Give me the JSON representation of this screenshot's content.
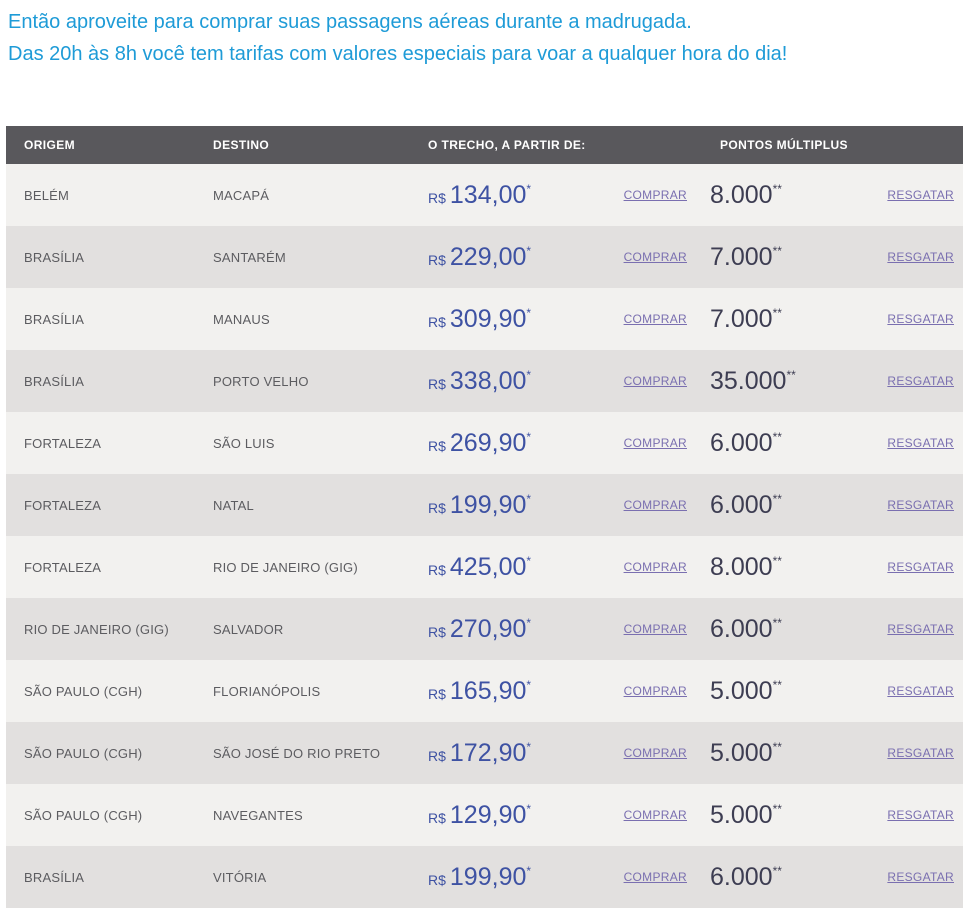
{
  "intro": {
    "line1": "Então aproveite para comprar suas passagens aéreas durante a madrugada.",
    "line2": "Das 20h às 8h você tem tarifas com valores especiais para voar a qualquer hora do dia!"
  },
  "table": {
    "headers": {
      "origin": "ORIGEM",
      "destination": "DESTINO",
      "price": "O TRECHO, A PARTIR DE:",
      "points": "PONTOS MÚLTIPLUS"
    },
    "currency": "R$",
    "price_note_marker": "*",
    "points_note_marker": "**",
    "buy_label": "COMPRAR",
    "redeem_label": "RESGATAR",
    "rows": [
      {
        "origin": "BELÉM",
        "destination": "MACAPÁ",
        "price": "134,00",
        "points": "8.000"
      },
      {
        "origin": "BRASÍLIA",
        "destination": "SANTARÉM",
        "price": "229,00",
        "points": "7.000"
      },
      {
        "origin": "BRASÍLIA",
        "destination": "MANAUS",
        "price": "309,90",
        "points": "7.000"
      },
      {
        "origin": "BRASÍLIA",
        "destination": "PORTO VELHO",
        "price": "338,00",
        "points": "35.000"
      },
      {
        "origin": "FORTALEZA",
        "destination": "SÃO LUIS",
        "price": "269,90",
        "points": "6.000"
      },
      {
        "origin": "FORTALEZA",
        "destination": "NATAL",
        "price": "199,90",
        "points": "6.000"
      },
      {
        "origin": "FORTALEZA",
        "destination": "RIO DE JANEIRO (GIG)",
        "price": "425,00",
        "points": "8.000"
      },
      {
        "origin": "RIO DE JANEIRO (GIG)",
        "destination": "SALVADOR",
        "price": "270,90",
        "points": "6.000"
      },
      {
        "origin": "SÃO PAULO (CGH)",
        "destination": "FLORIANÓPOLIS",
        "price": "165,90",
        "points": "5.000"
      },
      {
        "origin": "SÃO PAULO (CGH)",
        "destination": "SÃO JOSÉ DO RIO PRETO",
        "price": "172,90",
        "points": "5.000"
      },
      {
        "origin": "SÃO PAULO (CGH)",
        "destination": "NAVEGANTES",
        "price": "129,90",
        "points": "5.000"
      },
      {
        "origin": "BRASÍLIA",
        "destination": "VITÓRIA",
        "price": "199,90",
        "points": "6.000"
      }
    ]
  },
  "colors": {
    "intro_text": "#1e9bd7",
    "header_bg": "#59585c",
    "header_text": "#ffffff",
    "row_light": "#f2f1ef",
    "row_dark": "#e2e0df",
    "city_text": "#5c5c60",
    "price_text": "#3e52a3",
    "points_text": "#3d3d52",
    "link_text": "#7a6fb0"
  }
}
